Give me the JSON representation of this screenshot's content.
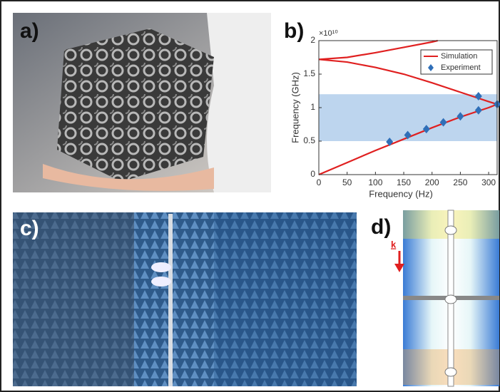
{
  "panels": [
    {
      "label": "a)"
    },
    {
      "label": "b)"
    },
    {
      "label": "c)"
    },
    {
      "label": "d)"
    }
  ],
  "wave_vector_label": "k",
  "chart_data": {
    "type": "line",
    "x_label": "Frequency (Hz)",
    "y_label": "Frequency (GHz)",
    "y_scale_label": "×10¹⁰",
    "xlim": [
      0,
      315
    ],
    "ylim": [
      0,
      2
    ],
    "xticks": [
      0,
      50,
      100,
      150,
      200,
      250,
      300
    ],
    "yticks": [
      0,
      0.5,
      1,
      1.5,
      2
    ],
    "shaded_band": {
      "range": [
        0.5,
        1.2
      ],
      "color": "#bdd5ee"
    },
    "legend": "upper right",
    "series": [
      {
        "name": "Simulation",
        "color": "#e02020",
        "style": "line",
        "x": [
          0,
          50,
          100,
          150,
          200,
          250,
          300,
          315,
          null,
          0,
          50,
          100,
          150,
          200,
          210,
          null,
          0,
          50,
          100,
          150,
          200,
          250,
          300,
          315
        ],
        "values": [
          0,
          0.18,
          0.36,
          0.53,
          0.7,
          0.86,
          1.0,
          1.05,
          null,
          1.72,
          1.75,
          1.82,
          1.9,
          1.98,
          2.0,
          null,
          1.72,
          1.68,
          1.6,
          1.5,
          1.37,
          1.23,
          1.09,
          1.05
        ]
      },
      {
        "name": "Experiment",
        "color": "#2f6fb8",
        "style": "diamond",
        "x": [
          125,
          157,
          190,
          220,
          250,
          282,
          282,
          315
        ],
        "values": [
          0.49,
          0.59,
          0.68,
          0.78,
          0.87,
          0.96,
          1.17,
          1.05
        ]
      }
    ]
  }
}
